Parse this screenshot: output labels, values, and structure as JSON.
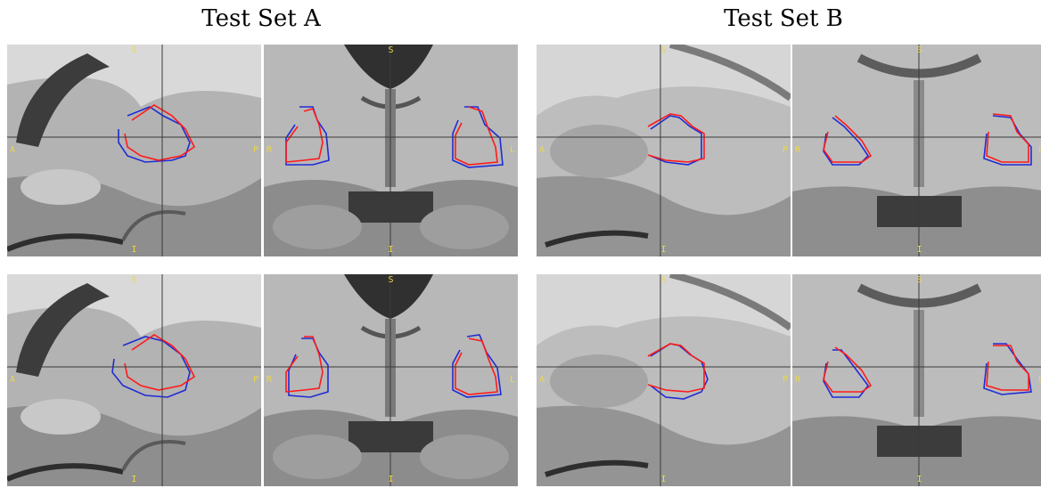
{
  "titles": {
    "set_a": "Test Set A",
    "set_b": "Test Set B"
  },
  "orientation_labels": {
    "sagittal": {
      "top": "S",
      "bottom": "I",
      "left": "A",
      "right": "P"
    },
    "coronal": {
      "top": "S",
      "bottom": "I",
      "left": "R",
      "right": "L"
    }
  },
  "colors": {
    "contour_red": "#ff1a1a",
    "contour_blue": "#1f2bd6",
    "orientation_label": "#e8d84a",
    "crosshair": "#3a3a3a"
  },
  "panels": [
    {
      "id": "a-row1-sagittal",
      "set": "A",
      "row": 1,
      "view": "sagittal"
    },
    {
      "id": "a-row1-coronal",
      "set": "A",
      "row": 1,
      "view": "coronal"
    },
    {
      "id": "b-row1-sagittal",
      "set": "B",
      "row": 1,
      "view": "sagittal"
    },
    {
      "id": "b-row1-coronal",
      "set": "B",
      "row": 1,
      "view": "coronal"
    },
    {
      "id": "a-row2-sagittal",
      "set": "A",
      "row": 2,
      "view": "sagittal"
    },
    {
      "id": "a-row2-coronal",
      "set": "A",
      "row": 2,
      "view": "coronal"
    },
    {
      "id": "b-row2-sagittal",
      "set": "B",
      "row": 2,
      "view": "sagittal"
    },
    {
      "id": "b-row2-coronal",
      "set": "B",
      "row": 2,
      "view": "coronal"
    }
  ]
}
